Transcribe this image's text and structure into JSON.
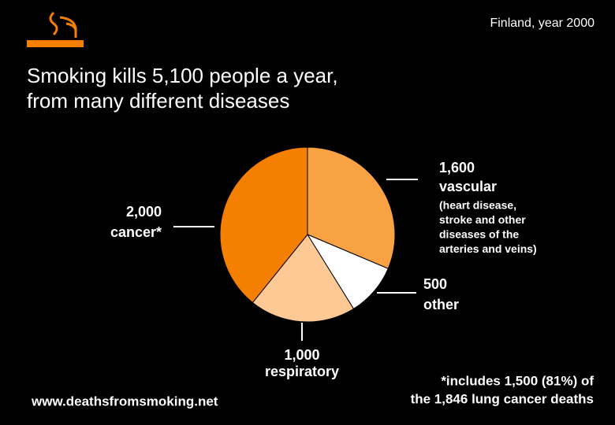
{
  "chart_data": {
    "type": "pie",
    "subtitle": "Finland, year 2000",
    "title": [
      "Smoking kills 5,100 people a year,",
      "from many different diseases"
    ],
    "categories": [
      "vascular",
      "other",
      "respiratory",
      "cancer*"
    ],
    "values": [
      1600,
      500,
      1000,
      2000
    ],
    "value_labels": [
      "1,600",
      "500",
      "1,000",
      "2,000"
    ],
    "colors": [
      "#f9a244",
      "#ffffff",
      "#ffc995",
      "#f57f00"
    ],
    "annotation": [
      "(heart disease,",
      "stroke and other",
      "diseases of the",
      "arteries and veins)"
    ],
    "footnote": [
      "*includes 1,500 (81%) of",
      "the 1,846 lung cancer deaths"
    ],
    "source": "www.deathsfromsmoking.net"
  }
}
